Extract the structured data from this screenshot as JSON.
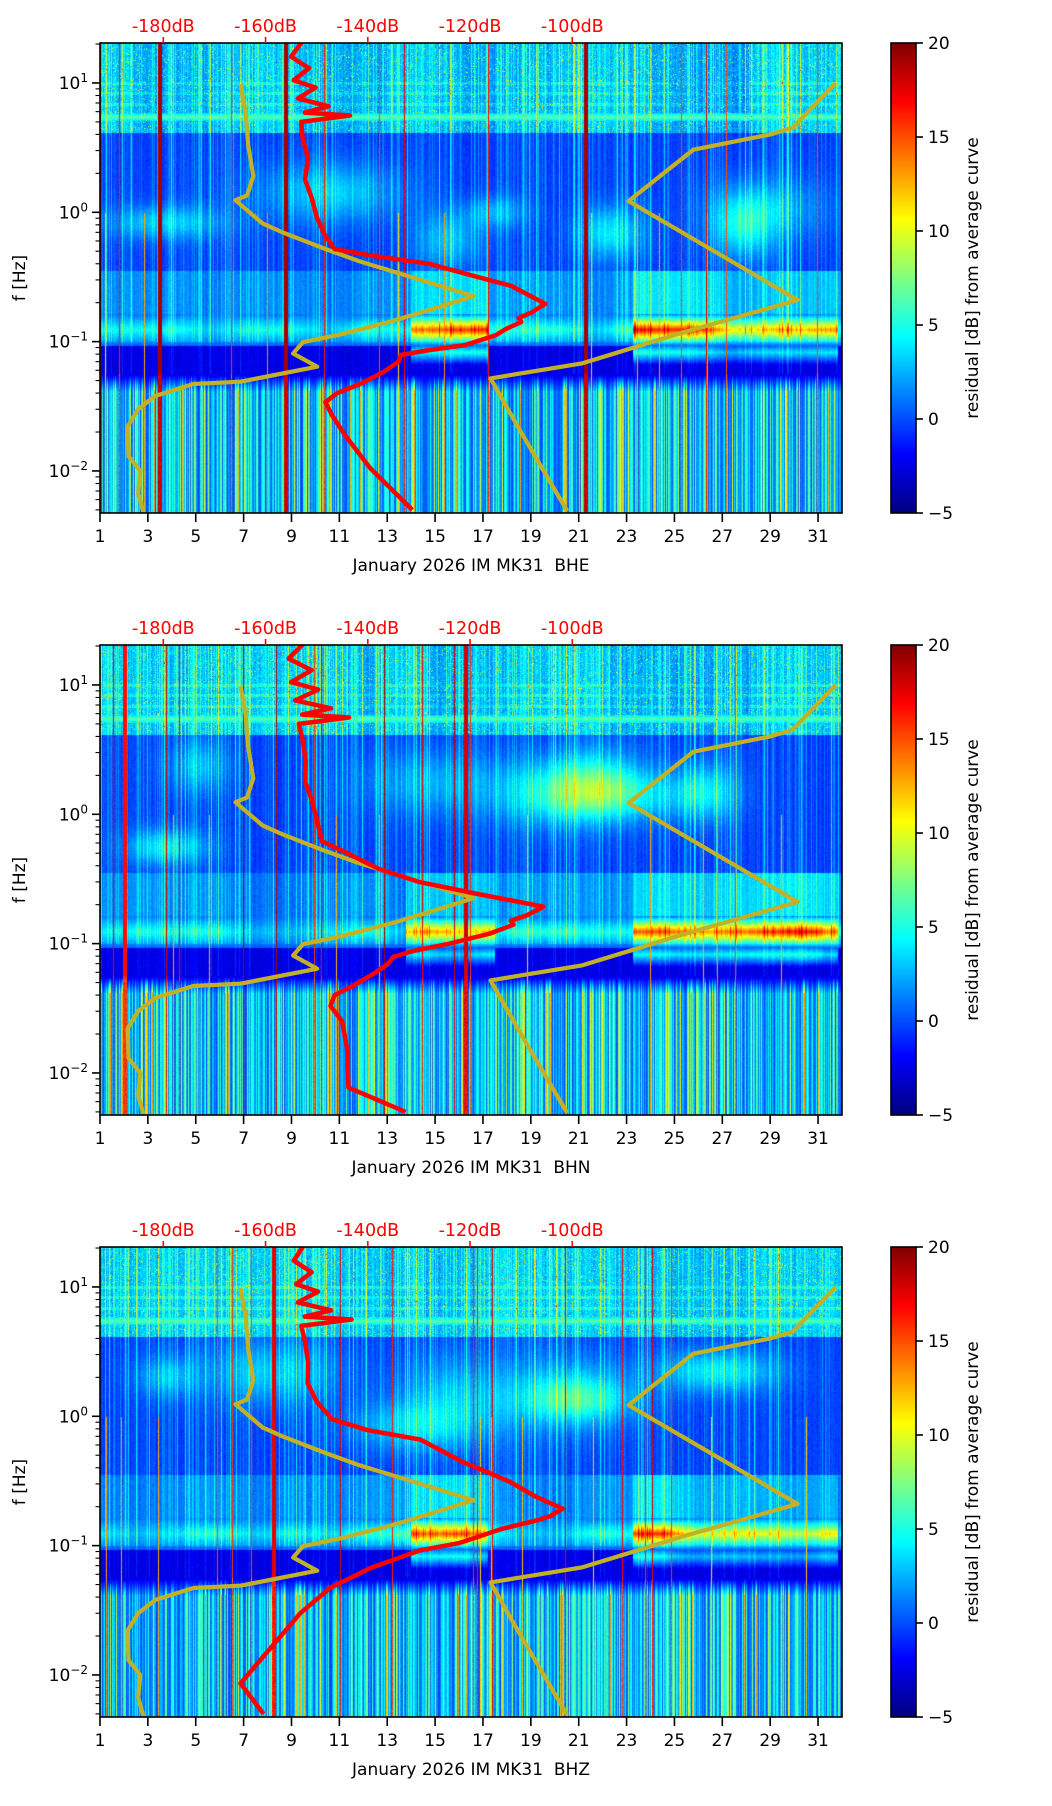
{
  "chart_data": {
    "type": "heatmap",
    "description": "Three stacked seismic noise residual spectrograms (day-of-month vs frequency, jet colormap) with overlaid average PSD curve (red) and noise-model curves (yellow) plotted against a secondary dB axis on top.",
    "axes": {
      "ylabel": "f [Hz]",
      "y_scale": "log",
      "y_range_hz": [
        0.0049,
        20.4
      ],
      "y_tick_exponents": [
        "1",
        "0",
        "−1",
        "−2"
      ],
      "x_tick_labels": [
        "1",
        "3",
        "5",
        "7",
        "9",
        "11",
        "13",
        "15",
        "17",
        "19",
        "21",
        "23",
        "25",
        "27",
        "29",
        "31"
      ],
      "x_tick_days": [
        1,
        3,
        5,
        7,
        9,
        11,
        13,
        15,
        17,
        19,
        21,
        23,
        25,
        27,
        29,
        31
      ],
      "x_range_days": [
        1,
        32
      ],
      "top_axis_labels": [
        "-180dB",
        "-160dB",
        "-140dB",
        "-120dB",
        "-100dB"
      ],
      "top_axis_values_db": [
        -180,
        -160,
        -140,
        -120,
        -100
      ],
      "top_axis_fractions": [
        0.0853,
        0.2231,
        0.3609,
        0.4987,
        0.6365
      ]
    },
    "colorbar": {
      "label": "residual [dB] from average curve",
      "tick_labels": [
        "20",
        "15",
        "10",
        "5",
        "0",
        "−5"
      ],
      "tick_values": [
        20,
        15,
        10,
        5,
        0,
        -5
      ],
      "min": -5,
      "max": 20,
      "colormap": "jet",
      "gradient_stops": [
        {
          "at": 0.0,
          "color": "#00007f"
        },
        {
          "at": 0.125,
          "color": "#0000ff"
        },
        {
          "at": 0.375,
          "color": "#00ffff"
        },
        {
          "at": 0.625,
          "color": "#ffff00"
        },
        {
          "at": 0.875,
          "color": "#ff0000"
        },
        {
          "at": 1.0,
          "color": "#7f0000"
        }
      ]
    },
    "colors": {
      "red_curve": "#ff0000",
      "yellow_curve": "#c2b127",
      "top_axis_text": "#ff0000",
      "axis_text": "#000000",
      "spine": "#000000"
    },
    "model_curves": {
      "yellow_left_db_hz": [
        [
          -164.9,
          9.8
        ],
        [
          -163.9,
          5.9
        ],
        [
          -163.4,
          3.3
        ],
        [
          -162.4,
          1.9
        ],
        [
          -163.6,
          1.35
        ],
        [
          -165.9,
          1.24
        ],
        [
          -160.6,
          0.82
        ],
        [
          -156.7,
          0.7
        ],
        [
          -148.3,
          0.52
        ],
        [
          -141.8,
          0.42
        ],
        [
          -119.3,
          0.225
        ],
        [
          -127.7,
          0.177
        ],
        [
          -135.5,
          0.143
        ],
        [
          -145.3,
          0.114
        ],
        [
          -152.7,
          0.099
        ],
        [
          -154.6,
          0.081
        ],
        [
          -149.9,
          0.064
        ],
        [
          -164.9,
          0.049
        ],
        [
          -174.1,
          0.047
        ],
        [
          -181.6,
          0.038
        ],
        [
          -184.9,
          0.03
        ],
        [
          -187.0,
          0.022
        ],
        [
          -186.8,
          0.013
        ],
        [
          -184.5,
          0.01
        ],
        [
          -184.9,
          0.0067
        ],
        [
          -183.9,
          0.0048
        ]
      ],
      "yellow_right_db_hz": [
        [
          -48.5,
          10
        ],
        [
          -56.9,
          4.5
        ],
        [
          -61.2,
          4.0
        ],
        [
          -76.3,
          3.05
        ],
        [
          -89.0,
          1.22
        ],
        [
          -55.9,
          0.21
        ],
        [
          -78.0,
          0.119
        ],
        [
          -98.0,
          0.068
        ],
        [
          -116.0,
          0.052
        ],
        [
          -110.5,
          0.0215
        ],
        [
          -101.0,
          0.0049
        ]
      ]
    },
    "panels": [
      {
        "channel": "BHE",
        "xlabel": "January 2026 IM MK31  BHE",
        "seed": 7,
        "red_curve_db_hz": [
          [
            -152.8,
            21
          ],
          [
            -155,
            16
          ],
          [
            -151.5,
            13
          ],
          [
            -154.5,
            10.5
          ],
          [
            -150.5,
            9.2
          ],
          [
            -153.5,
            7.6
          ],
          [
            -147.5,
            6.6
          ],
          [
            -152.5,
            5.9
          ],
          [
            -143.3,
            5.6
          ],
          [
            -153,
            5.0
          ],
          [
            -152.5,
            3.8
          ],
          [
            -151.5,
            2.6
          ],
          [
            -152,
            1.8
          ],
          [
            -151,
            1.3
          ],
          [
            -150,
            0.92
          ],
          [
            -148.5,
            0.68
          ],
          [
            -146.5,
            0.52
          ],
          [
            -139,
            0.46
          ],
          [
            -128,
            0.4
          ],
          [
            -119,
            0.32
          ],
          [
            -112,
            0.27
          ],
          [
            -105.3,
            0.196
          ],
          [
            -108,
            0.168
          ],
          [
            -110.5,
            0.152
          ],
          [
            -110,
            0.142
          ],
          [
            -113,
            0.125
          ],
          [
            -115,
            0.112
          ],
          [
            -121,
            0.094
          ],
          [
            -128,
            0.086
          ],
          [
            -133.5,
            0.079
          ],
          [
            -134,
            0.07
          ],
          [
            -137,
            0.058
          ],
          [
            -141.5,
            0.047
          ],
          [
            -146,
            0.04
          ],
          [
            -148.3,
            0.034
          ],
          [
            -147,
            0.027
          ],
          [
            -144.5,
            0.019
          ],
          [
            -139.5,
            0.0105
          ],
          [
            -135,
            0.007
          ],
          [
            -131.3,
            0.005
          ]
        ],
        "hot_day_ranges": [
          [
            14,
            17.2
          ],
          [
            23.3,
            31.8
          ]
        ],
        "top_bright_day_ranges": [
          [
            1,
            2.2
          ],
          [
            8,
            9.2
          ],
          [
            13,
            14.2
          ],
          [
            20,
            22.3
          ],
          [
            28.2,
            32
          ]
        ]
      },
      {
        "channel": "BHN",
        "xlabel": "January 2026 IM MK31  BHN",
        "seed": 13,
        "red_curve_db_hz": [
          [
            -152.5,
            21
          ],
          [
            -155.5,
            16
          ],
          [
            -151,
            13
          ],
          [
            -155,
            10.5
          ],
          [
            -150,
            9.2
          ],
          [
            -154,
            7.6
          ],
          [
            -147,
            6.6
          ],
          [
            -153,
            5.9
          ],
          [
            -143.5,
            5.6
          ],
          [
            -153.5,
            5.0
          ],
          [
            -152.5,
            3.8
          ],
          [
            -152,
            2.6
          ],
          [
            -152,
            1.8
          ],
          [
            -151,
            1.3
          ],
          [
            -150,
            0.92
          ],
          [
            -149,
            0.62
          ],
          [
            -144,
            0.5
          ],
          [
            -138,
            0.38
          ],
          [
            -130,
            0.3
          ],
          [
            -118,
            0.24
          ],
          [
            -105.6,
            0.193
          ],
          [
            -109,
            0.165
          ],
          [
            -112,
            0.15
          ],
          [
            -111.5,
            0.14
          ],
          [
            -116,
            0.12
          ],
          [
            -124,
            0.1
          ],
          [
            -131,
            0.088
          ],
          [
            -135,
            0.079
          ],
          [
            -136,
            0.07
          ],
          [
            -139,
            0.058
          ],
          [
            -143,
            0.047
          ],
          [
            -146.5,
            0.04
          ],
          [
            -147.3,
            0.033
          ],
          [
            -145,
            0.025
          ],
          [
            -144,
            0.015
          ],
          [
            -143.8,
            0.0077
          ],
          [
            -132.6,
            0.005
          ]
        ],
        "hot_day_ranges": [
          [
            13.8,
            17.5
          ],
          [
            23.3,
            31.8
          ]
        ],
        "top_bright_day_ranges": [
          [
            1,
            2.2
          ],
          [
            7.8,
            9.2
          ],
          [
            13,
            14.5
          ],
          [
            20,
            22.3
          ],
          [
            28.2,
            32
          ]
        ]
      },
      {
        "channel": "BHZ",
        "xlabel": "January 2026 IM MK31  BHZ",
        "seed": 21,
        "red_curve_db_hz": [
          [
            -152.5,
            21
          ],
          [
            -154.5,
            16
          ],
          [
            -151,
            13
          ],
          [
            -154,
            10.5
          ],
          [
            -150,
            9.2
          ],
          [
            -153.5,
            7.6
          ],
          [
            -147,
            6.6
          ],
          [
            -152.5,
            5.9
          ],
          [
            -143,
            5.6
          ],
          [
            -153,
            5.0
          ],
          [
            -152,
            3.8
          ],
          [
            -151.5,
            2.6
          ],
          [
            -151.5,
            1.8
          ],
          [
            -150,
            1.3
          ],
          [
            -147,
            0.95
          ],
          [
            -140,
            0.78
          ],
          [
            -129.7,
            0.66
          ],
          [
            -121.3,
            0.44
          ],
          [
            -116.6,
            0.37
          ],
          [
            -112.1,
            0.31
          ],
          [
            -107.2,
            0.24
          ],
          [
            -101.9,
            0.193
          ],
          [
            -104.3,
            0.169
          ],
          [
            -106.6,
            0.158
          ],
          [
            -113.7,
            0.135
          ],
          [
            -122,
            0.105
          ],
          [
            -129.7,
            0.092
          ],
          [
            -139.5,
            0.067
          ],
          [
            -147.4,
            0.047
          ],
          [
            -153.2,
            0.03
          ],
          [
            -159.1,
            0.016
          ],
          [
            -164.9,
            0.0086
          ],
          [
            -160.4,
            0.005
          ]
        ],
        "hot_day_ranges": [
          [
            14,
            17.2
          ],
          [
            23.3,
            31.8
          ]
        ],
        "top_bright_day_ranges": [
          [
            1,
            2.2
          ],
          [
            8,
            9.2
          ],
          [
            13.5,
            14.5
          ],
          [
            20,
            22.3
          ],
          [
            28.2,
            32
          ]
        ]
      }
    ]
  }
}
